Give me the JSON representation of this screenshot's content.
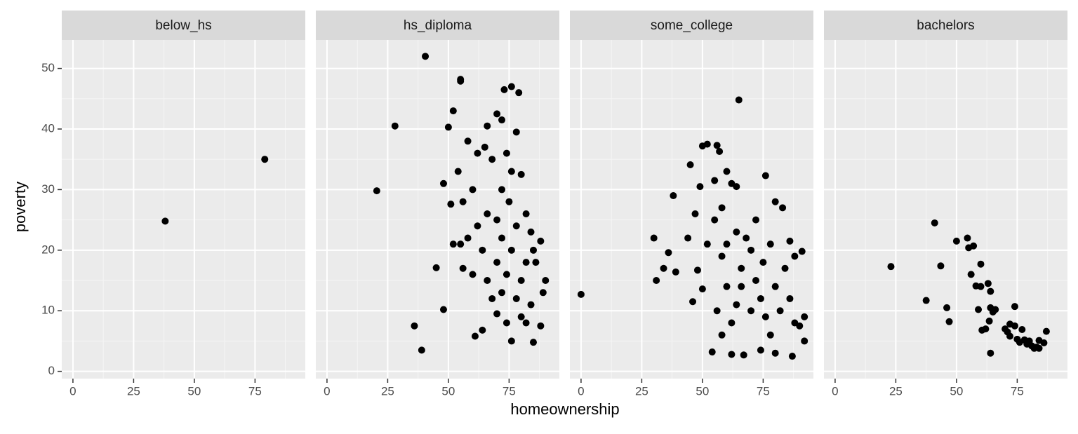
{
  "axes": {
    "x_label": "homeownership",
    "y_label": "poverty"
  },
  "chart_data": [
    {
      "type": "scatter",
      "title": "below_hs",
      "color": "#000000",
      "grid": true,
      "x": [
        38,
        79
      ],
      "y": [
        24.8,
        35
      ],
      "xlim": [
        -4.6,
        95.7
      ],
      "ylim": [
        -1.2,
        54.7
      ],
      "xticks": [
        0,
        25,
        50,
        75
      ],
      "yticks": [
        0,
        10,
        20,
        30,
        40,
        50
      ]
    },
    {
      "type": "scatter",
      "title": "hs_diploma",
      "color": "#000000",
      "grid": true,
      "x": [
        40.5,
        55,
        55,
        76,
        73,
        79,
        28,
        20.5,
        52,
        50,
        48,
        45,
        48,
        36,
        39,
        61,
        64,
        76,
        85,
        88,
        90,
        89,
        88,
        70,
        72,
        78,
        66,
        58,
        54,
        56,
        52,
        51,
        55,
        56,
        58,
        60,
        62,
        65,
        68,
        80,
        82,
        85,
        86,
        84,
        80,
        74,
        70,
        68,
        66,
        64,
        70,
        72,
        75,
        78,
        76,
        74,
        72,
        78,
        80,
        82,
        84,
        70,
        72,
        76,
        74,
        66,
        62,
        60,
        82
      ],
      "y": [
        52,
        48.2,
        47.9,
        47,
        46.5,
        46,
        40.5,
        29.8,
        43,
        40.3,
        31,
        17.1,
        10.2,
        7.5,
        3.5,
        5.8,
        6.8,
        5,
        4.8,
        7.5,
        15,
        13,
        21.5,
        42.5,
        41.5,
        39.5,
        40.5,
        38,
        33,
        28,
        21,
        27.6,
        21,
        17,
        22,
        30,
        36,
        37,
        35,
        32.5,
        26,
        20,
        18,
        11,
        9,
        8,
        9.5,
        12,
        15,
        20,
        25,
        30,
        28,
        24,
        20,
        16,
        13,
        12,
        15,
        18,
        23,
        18,
        22,
        33,
        36,
        26,
        24,
        16,
        8
      ],
      "xlim": [
        -4.6,
        95.7
      ],
      "ylim": [
        -1.2,
        54.7
      ],
      "xticks": [
        0,
        25,
        50,
        75
      ],
      "yticks": [
        0,
        10,
        20,
        30,
        40,
        50
      ]
    },
    {
      "type": "scatter",
      "title": "some_college",
      "color": "#000000",
      "grid": true,
      "x": [
        0,
        65,
        30,
        31,
        34,
        36,
        38,
        39,
        44,
        45,
        47,
        49,
        50,
        52,
        56,
        57,
        55,
        60,
        58,
        62,
        64,
        76,
        80,
        83,
        86,
        88,
        91,
        92,
        92,
        90,
        87,
        80,
        74,
        67,
        62,
        54,
        46,
        48,
        50,
        52,
        55,
        58,
        60,
        62,
        64,
        66,
        68,
        70,
        72,
        74,
        76,
        78,
        80,
        82,
        84,
        86,
        88,
        70,
        72,
        66,
        64,
        60,
        75,
        78,
        56,
        58
      ],
      "y": [
        12.7,
        44.8,
        22,
        15,
        17,
        19.6,
        29,
        16.4,
        22,
        34.1,
        26,
        30.5,
        37.2,
        37.5,
        37.3,
        36.3,
        31.5,
        33,
        27,
        31,
        30.5,
        32.3,
        28,
        27,
        21.5,
        19,
        19.8,
        9,
        5,
        7.5,
        2.5,
        3,
        3.5,
        2.7,
        2.8,
        3.2,
        11.5,
        16.7,
        13.6,
        21,
        25,
        19,
        14,
        8,
        11,
        17,
        22,
        20,
        15,
        12,
        9,
        6,
        14,
        10,
        17,
        12,
        8,
        10,
        25,
        14,
        23,
        21,
        18,
        21,
        10,
        6
      ],
      "xlim": [
        -4.6,
        95.7
      ],
      "ylim": [
        -1.2,
        54.7
      ],
      "xticks": [
        0,
        25,
        50,
        75
      ],
      "yticks": [
        0,
        10,
        20,
        30,
        40,
        50
      ]
    },
    {
      "type": "scatter",
      "title": "bachelors",
      "color": "#000000",
      "grid": true,
      "x": [
        23,
        37.5,
        41,
        43.5,
        46,
        47,
        50,
        54.5,
        55,
        56,
        57,
        58,
        59,
        60,
        60,
        60.5,
        62,
        63,
        63.5,
        64,
        64,
        64,
        65,
        66,
        70,
        71,
        72,
        72,
        74,
        74,
        75,
        76,
        77,
        78,
        80,
        81,
        82,
        83,
        84,
        86,
        87,
        84,
        79
      ],
      "y": [
        17.3,
        11.7,
        24.5,
        17.4,
        10.5,
        8.2,
        21.5,
        22,
        20.4,
        16,
        20.7,
        14.1,
        10.2,
        14,
        17.7,
        6.8,
        7,
        14.5,
        8.3,
        13.2,
        10.5,
        3,
        9.8,
        10.2,
        7,
        6.5,
        7.8,
        5.8,
        10.7,
        7.5,
        5.3,
        4.8,
        6.9,
        5.2,
        5,
        4.2,
        3.8,
        4,
        5.1,
        4.7,
        6.6,
        3.8,
        4.5
      ],
      "xlim": [
        -4.6,
        95.7
      ],
      "ylim": [
        -1.2,
        54.7
      ],
      "xticks": [
        0,
        25,
        50,
        75
      ],
      "yticks": [
        0,
        10,
        20,
        30,
        40,
        50
      ]
    }
  ]
}
